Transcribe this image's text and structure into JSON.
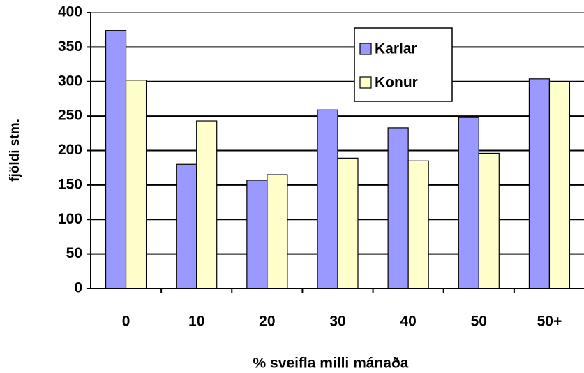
{
  "chart_data": {
    "type": "bar",
    "x_label": "% sveifla milli mánaða",
    "y_label": "fjöldi stm.",
    "categories": [
      "0",
      "10",
      "20",
      "30",
      "40",
      "50",
      "50+"
    ],
    "series": [
      {
        "name": "Karlar",
        "color": "#9999ff",
        "values": [
          374,
          180,
          157,
          259,
          233,
          248,
          304
        ]
      },
      {
        "name": "Konur",
        "color": "#ffffcc",
        "values": [
          302,
          243,
          165,
          189,
          185,
          196,
          300
        ]
      }
    ],
    "ylim": [
      0,
      400
    ],
    "yticks": [
      0,
      50,
      100,
      150,
      200,
      250,
      300,
      350,
      400
    ],
    "grid": true
  }
}
